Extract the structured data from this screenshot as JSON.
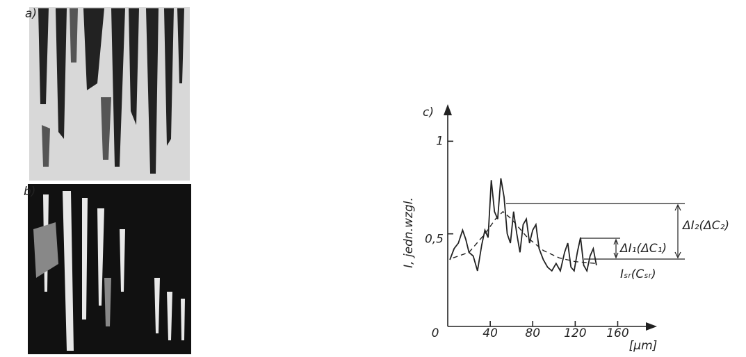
{
  "panel_labels": [
    "a)",
    "b)"
  ],
  "chart_data": {
    "type": "line",
    "panel_label": "c)",
    "y_label": "I, jedn.wzgl.",
    "x_label": "[μm]",
    "xlim": [
      0,
      197
    ],
    "ylim": [
      0,
      1.2
    ],
    "xticks": [
      0,
      40,
      80,
      120,
      160
    ],
    "yticks": [
      {
        "value": 0.5,
        "label": "0,5"
      },
      1
    ],
    "series": [
      {
        "style": "solid",
        "color": "#222",
        "x": [
          2,
          6,
          10,
          14,
          17,
          20,
          24,
          28,
          32,
          35,
          38,
          41,
          44,
          47,
          50,
          53,
          56,
          59,
          62,
          65,
          68,
          71,
          74,
          77,
          80,
          83,
          86,
          90,
          94,
          98,
          102,
          106,
          110,
          113,
          116,
          119,
          122,
          125,
          128,
          131,
          134,
          137,
          140
        ],
        "values": [
          0.36,
          0.42,
          0.45,
          0.52,
          0.47,
          0.4,
          0.38,
          0.3,
          0.44,
          0.52,
          0.48,
          0.79,
          0.62,
          0.58,
          0.8,
          0.7,
          0.5,
          0.45,
          0.62,
          0.5,
          0.4,
          0.55,
          0.58,
          0.45,
          0.52,
          0.55,
          0.42,
          0.36,
          0.32,
          0.3,
          0.34,
          0.3,
          0.4,
          0.45,
          0.32,
          0.3,
          0.4,
          0.48,
          0.33,
          0.3,
          0.38,
          0.42,
          0.33
        ]
      },
      {
        "style": "dashed",
        "color": "#222",
        "x": [
          5,
          20,
          35,
          45,
          52,
          60,
          75,
          90,
          105,
          120,
          140
        ],
        "values": [
          0.37,
          0.4,
          0.5,
          0.58,
          0.62,
          0.58,
          0.48,
          0.41,
          0.37,
          0.35,
          0.34
        ]
      }
    ],
    "annotations": [
      "ΔI₂(ΔC₂)",
      "ΔI₁(ΔC₁)",
      "Iₛᵣ(Cₛᵣ)"
    ]
  }
}
